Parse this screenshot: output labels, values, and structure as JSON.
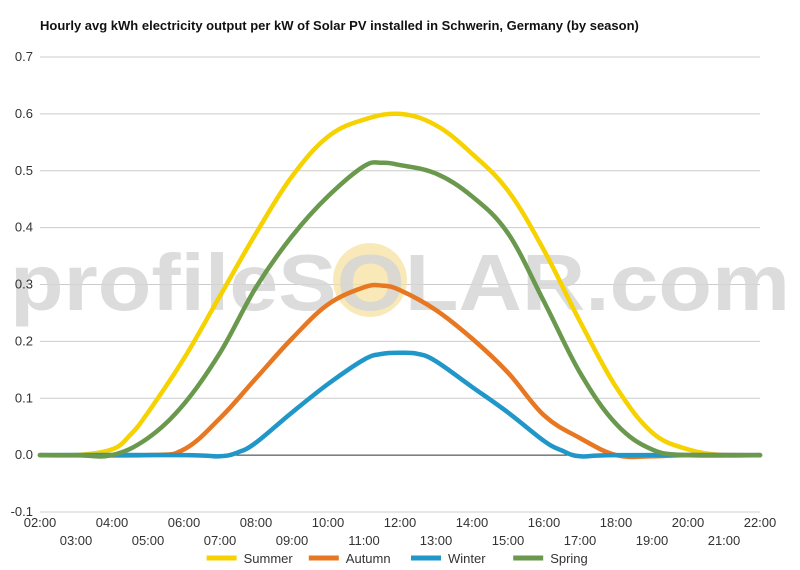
{
  "chart_data": {
    "type": "line",
    "title": "Hourly avg kWh electricity output per kW of Solar PV installed in Schwerin, Germany (by season)",
    "xlabel": "",
    "ylabel": "",
    "x_ticks_upper": [
      "02:00",
      "04:00",
      "06:00",
      "08:00",
      "10:00",
      "12:00",
      "14:00",
      "16:00",
      "18:00",
      "20:00",
      "22:00"
    ],
    "x_ticks_lower": [
      "03:00",
      "05:00",
      "07:00",
      "09:00",
      "11:00",
      "13:00",
      "15:00",
      "17:00",
      "19:00",
      "21:00"
    ],
    "y_ticks": [
      "-0.1",
      "0.0",
      "0.1",
      "0.2",
      "0.3",
      "0.4",
      "0.5",
      "0.6",
      "0.7"
    ],
    "ylim": [
      -0.1,
      0.7
    ],
    "grid": true,
    "legend_position": "bottom",
    "watermark": "profileSOLAR.com",
    "series": [
      {
        "name": "Summer",
        "color": "#f5d200",
        "points": [
          [
            "02:00",
            0.0
          ],
          [
            "03:00",
            0.0
          ],
          [
            "04:00",
            0.01
          ],
          [
            "04:30",
            0.035
          ],
          [
            "05:00",
            0.075
          ],
          [
            "06:00",
            0.17
          ],
          [
            "07:00",
            0.28
          ],
          [
            "08:00",
            0.39
          ],
          [
            "09:00",
            0.49
          ],
          [
            "10:00",
            0.56
          ],
          [
            "11:00",
            0.59
          ],
          [
            "12:00",
            0.6
          ],
          [
            "13:00",
            0.58
          ],
          [
            "14:00",
            0.53
          ],
          [
            "15:00",
            0.465
          ],
          [
            "16:00",
            0.36
          ],
          [
            "17:00",
            0.235
          ],
          [
            "18:00",
            0.12
          ],
          [
            "19:00",
            0.04
          ],
          [
            "20:00",
            0.01
          ],
          [
            "21:00",
            0.0
          ],
          [
            "22:00",
            0.0
          ]
        ]
      },
      {
        "name": "Autumn",
        "color": "#e87722",
        "points": [
          [
            "02:00",
            0.0
          ],
          [
            "05:00",
            0.0
          ],
          [
            "06:00",
            0.01
          ],
          [
            "07:00",
            0.065
          ],
          [
            "08:00",
            0.135
          ],
          [
            "09:00",
            0.205
          ],
          [
            "10:00",
            0.265
          ],
          [
            "11:00",
            0.295
          ],
          [
            "11:30",
            0.298
          ],
          [
            "12:00",
            0.29
          ],
          [
            "13:00",
            0.255
          ],
          [
            "14:00",
            0.205
          ],
          [
            "15:00",
            0.145
          ],
          [
            "16:00",
            0.07
          ],
          [
            "17:00",
            0.03
          ],
          [
            "18:00",
            0.0
          ],
          [
            "19:00",
            -0.002
          ],
          [
            "20:00",
            0.0
          ],
          [
            "22:00",
            0.0
          ]
        ]
      },
      {
        "name": "Winter",
        "color": "#2196c8",
        "points": [
          [
            "02:00",
            0.0
          ],
          [
            "06:00",
            0.0
          ],
          [
            "07:00",
            -0.002
          ],
          [
            "07:30",
            0.005
          ],
          [
            "08:00",
            0.022
          ],
          [
            "09:00",
            0.075
          ],
          [
            "10:00",
            0.125
          ],
          [
            "11:00",
            0.168
          ],
          [
            "11:30",
            0.178
          ],
          [
            "12:00",
            0.18
          ],
          [
            "12:30",
            0.178
          ],
          [
            "13:00",
            0.165
          ],
          [
            "14:00",
            0.12
          ],
          [
            "15:00",
            0.075
          ],
          [
            "16:00",
            0.025
          ],
          [
            "16:30",
            0.008
          ],
          [
            "17:00",
            -0.002
          ],
          [
            "18:00",
            0.0
          ],
          [
            "22:00",
            0.0
          ]
        ]
      },
      {
        "name": "Spring",
        "color": "#6a994e",
        "points": [
          [
            "02:00",
            0.0
          ],
          [
            "03:00",
            0.0
          ],
          [
            "04:00",
            0.0
          ],
          [
            "05:00",
            0.03
          ],
          [
            "06:00",
            0.09
          ],
          [
            "07:00",
            0.18
          ],
          [
            "08:00",
            0.295
          ],
          [
            "09:00",
            0.385
          ],
          [
            "10:00",
            0.455
          ],
          [
            "11:00",
            0.508
          ],
          [
            "11:30",
            0.514
          ],
          [
            "12:00",
            0.51
          ],
          [
            "13:00",
            0.495
          ],
          [
            "14:00",
            0.455
          ],
          [
            "15:00",
            0.39
          ],
          [
            "16:00",
            0.27
          ],
          [
            "17:00",
            0.145
          ],
          [
            "18:00",
            0.055
          ],
          [
            "19:00",
            0.01
          ],
          [
            "20:00",
            0.0
          ],
          [
            "22:00",
            0.0
          ]
        ]
      }
    ]
  }
}
